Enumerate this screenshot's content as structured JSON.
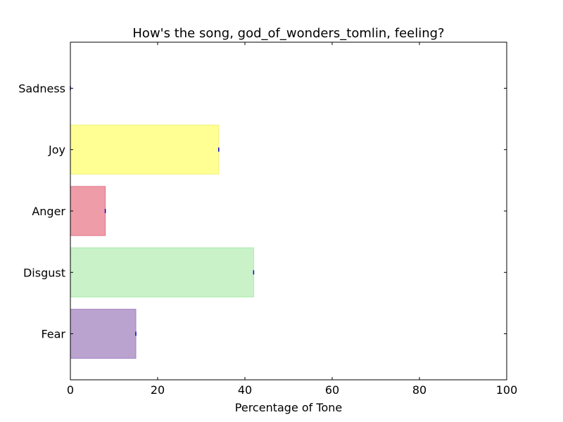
{
  "chart_data": {
    "type": "bar",
    "orientation": "horizontal",
    "title": "How's the song, god_of_wonders_tomlin, feeling?",
    "xlabel": "Percentage of Tone",
    "ylabel": "",
    "xlim": [
      0,
      100
    ],
    "x_ticks": [
      "0",
      "20",
      "40",
      "60",
      "80",
      "100"
    ],
    "categories": [
      "Fear",
      "Disgust",
      "Anger",
      "Joy",
      "Sadness"
    ],
    "values": [
      15,
      42,
      8,
      34,
      0
    ],
    "colors": [
      "#bba3d0",
      "#c9f2c9",
      "#ef9ca9",
      "#ffff93",
      "#9aa9ff"
    ],
    "edge_colors": [
      "#a381c4",
      "#a9e9a9",
      "#e17185",
      "#f2f27a",
      "#7080f0"
    ],
    "error_marker_color": "#0000cc",
    "grid": false,
    "legend": "none"
  }
}
